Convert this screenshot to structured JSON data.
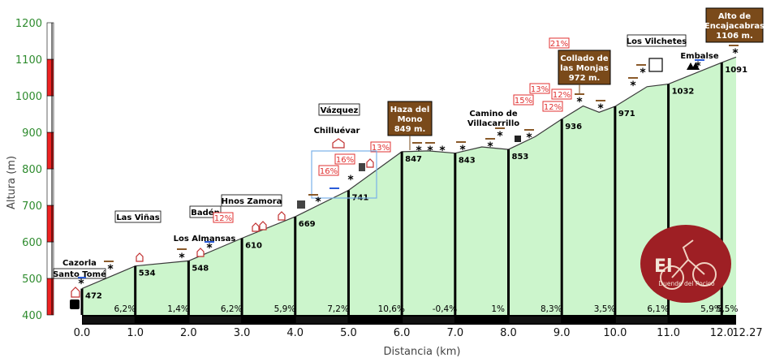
{
  "chart_data": {
    "type": "area",
    "xlabel": "Distancia (km)",
    "ylabel": "Altura (m)",
    "xlim": [
      0,
      12.27
    ],
    "ylim": [
      400,
      1200
    ],
    "x_ticks": [
      "0.0",
      "1.0",
      "2.0",
      "3.0",
      "4.0",
      "5.0",
      "6.0",
      "7.0",
      "8.0",
      "9.0",
      "10.0",
      "11.0",
      "12.0",
      "12.27"
    ],
    "y_ticks": [
      "400",
      "500",
      "600",
      "700",
      "800",
      "900",
      "1000",
      "1100",
      "1200"
    ],
    "profile": [
      {
        "x": 0.0,
        "y": 472
      },
      {
        "x": 1.0,
        "y": 534
      },
      {
        "x": 2.0,
        "y": 548
      },
      {
        "x": 3.0,
        "y": 610
      },
      {
        "x": 4.0,
        "y": 669
      },
      {
        "x": 5.0,
        "y": 741
      },
      {
        "x": 6.0,
        "y": 847
      },
      {
        "x": 6.5,
        "y": 849
      },
      {
        "x": 7.0,
        "y": 843
      },
      {
        "x": 7.5,
        "y": 860
      },
      {
        "x": 8.0,
        "y": 853
      },
      {
        "x": 8.5,
        "y": 888
      },
      {
        "x": 9.0,
        "y": 936
      },
      {
        "x": 9.4,
        "y": 972
      },
      {
        "x": 9.7,
        "y": 955
      },
      {
        "x": 10.0,
        "y": 971
      },
      {
        "x": 10.6,
        "y": 1025
      },
      {
        "x": 11.0,
        "y": 1032
      },
      {
        "x": 12.0,
        "y": 1091
      },
      {
        "x": 12.27,
        "y": 1106
      }
    ],
    "km_markers": [
      {
        "x": 0.0,
        "label": "472"
      },
      {
        "x": 1.0,
        "label": "534"
      },
      {
        "x": 2.0,
        "label": "548"
      },
      {
        "x": 3.0,
        "label": "610"
      },
      {
        "x": 4.0,
        "label": "669"
      },
      {
        "x": 5.0,
        "label": "741"
      },
      {
        "x": 6.0,
        "label": "847"
      },
      {
        "x": 7.0,
        "label": "843"
      },
      {
        "x": 8.0,
        "label": "853"
      },
      {
        "x": 9.0,
        "label": "936"
      },
      {
        "x": 10.0,
        "label": "971"
      },
      {
        "x": 11.0,
        "label": "1032"
      },
      {
        "x": 12.0,
        "label": "1091"
      }
    ],
    "grades": [
      "6,2%",
      "1,4%",
      "6,2%",
      "5,9%",
      "7,2%",
      "10,6%",
      "-0,4%",
      "1%",
      "8,3%",
      "3,5%",
      "6,1%",
      "5,9%",
      "5,5%"
    ],
    "annotations": {
      "places": [
        "Cazorla",
        "Santo Tomé",
        "Las Viñas",
        "Badén",
        "Los Almansas",
        "Hnos Zamora",
        "Chilluévar",
        "Vázquez",
        "Camino de",
        "Villacarrillo",
        "Los Vilchetes",
        "Embalse"
      ],
      "passes": [
        {
          "x": 6.3,
          "y": 849,
          "lines": [
            "Haza del",
            "Mono",
            "849 m."
          ]
        },
        {
          "x": 9.6,
          "y": 972,
          "lines": [
            "Collado de",
            "las Monjas",
            "972 m."
          ]
        },
        {
          "x": 12.27,
          "y": 1106,
          "lines": [
            "Alto de",
            "Encajacabras",
            "1106 m."
          ]
        }
      ],
      "slope_badges": [
        "12%",
        "16%",
        "16%",
        "13%",
        "15%",
        "13%",
        "12%",
        "12%",
        "21%"
      ]
    },
    "logo_text": [
      "El",
      "Duende del Pocico"
    ],
    "colors": {
      "fill": "#ccf5cc",
      "line": "#3a3a3a",
      "pass_box": "#7a4a1a",
      "slope_red": "#e03030",
      "axis_green": "#2e8b2e"
    }
  }
}
